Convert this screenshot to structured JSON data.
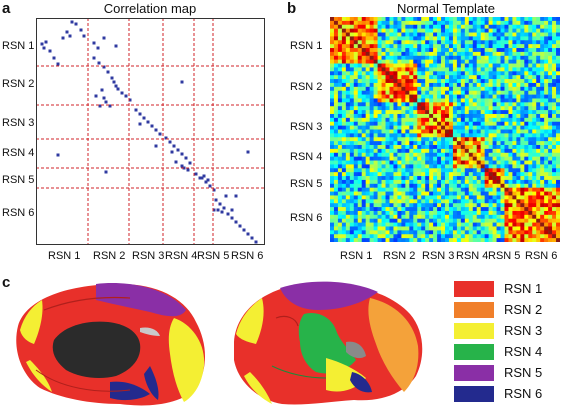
{
  "panel_a": {
    "label": "a",
    "title": "Correlation map",
    "row_labels": [
      "RSN 1",
      "RSN 2",
      "RSN 3",
      "RSN 4",
      "RSN 5",
      "RSN 6"
    ],
    "col_labels": [
      "RSN 1",
      "RSN 2",
      "RSN 3",
      "RSN 4",
      "RSN 5",
      "RSN 6"
    ]
  },
  "panel_b": {
    "label": "b",
    "title": "Normal Template",
    "row_labels": [
      "RSN 1",
      "RSN 2",
      "RSN 3",
      "RSN 4",
      "RSN 5",
      "RSN 6"
    ],
    "col_labels": [
      "RSN 1",
      "RSN 2",
      "RSN 3",
      "RSN 4",
      "RSN 5",
      "RSN 6"
    ]
  },
  "panel_c": {
    "label": "c",
    "legend": [
      {
        "label": "RSN 1",
        "color": "#e8302a"
      },
      {
        "label": "RSN 2",
        "color": "#f07f2a"
      },
      {
        "label": "RSN 3",
        "color": "#f4ef33"
      },
      {
        "label": "RSN 4",
        "color": "#27b34a"
      },
      {
        "label": "RSN 5",
        "color": "#8a2fa6"
      },
      {
        "label": "RSN 6",
        "color": "#232a8e"
      }
    ]
  },
  "colors": {
    "dot": "#2f3aa0",
    "grid_line": "#d0232a",
    "brain_gray": "#c9c9c9",
    "brain_dark": "#2b2b2b"
  }
}
